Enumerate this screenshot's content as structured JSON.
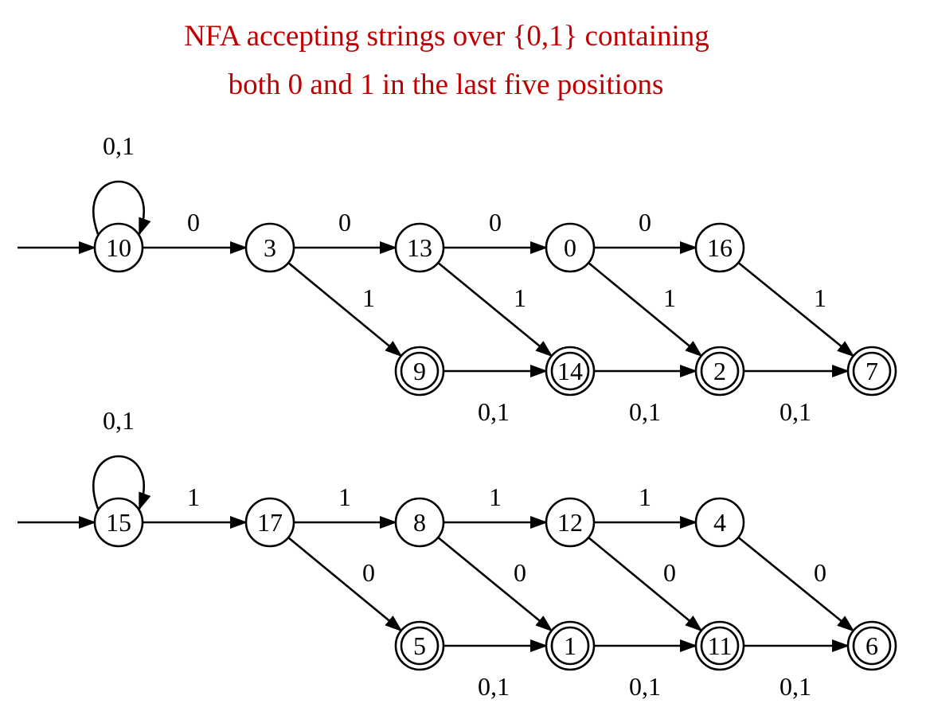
{
  "title": {
    "line1": "NFA accepting strings over {0,1} containing",
    "line2": "both 0 and 1 in the last five positions"
  },
  "colors": {
    "title": "#c00000",
    "ink": "#000000",
    "background": "#ffffff"
  },
  "states": [
    {
      "id": "10",
      "start": true,
      "accepting": false
    },
    {
      "id": "3",
      "start": false,
      "accepting": false
    },
    {
      "id": "13",
      "start": false,
      "accepting": false
    },
    {
      "id": "0",
      "start": false,
      "accepting": false
    },
    {
      "id": "16",
      "start": false,
      "accepting": false
    },
    {
      "id": "9",
      "start": false,
      "accepting": true
    },
    {
      "id": "14",
      "start": false,
      "accepting": true
    },
    {
      "id": "2",
      "start": false,
      "accepting": true
    },
    {
      "id": "7",
      "start": false,
      "accepting": true
    },
    {
      "id": "15",
      "start": true,
      "accepting": false
    },
    {
      "id": "17",
      "start": false,
      "accepting": false
    },
    {
      "id": "8",
      "start": false,
      "accepting": false
    },
    {
      "id": "12",
      "start": false,
      "accepting": false
    },
    {
      "id": "4",
      "start": false,
      "accepting": false
    },
    {
      "id": "5",
      "start": false,
      "accepting": true
    },
    {
      "id": "1",
      "start": false,
      "accepting": true
    },
    {
      "id": "11",
      "start": false,
      "accepting": true
    },
    {
      "id": "6",
      "start": false,
      "accepting": true
    }
  ],
  "transitions": [
    {
      "from": "10",
      "to": "10",
      "label": "0,1"
    },
    {
      "from": "10",
      "to": "3",
      "label": "0"
    },
    {
      "from": "3",
      "to": "13",
      "label": "0"
    },
    {
      "from": "13",
      "to": "0",
      "label": "0"
    },
    {
      "from": "0",
      "to": "16",
      "label": "0"
    },
    {
      "from": "3",
      "to": "9",
      "label": "1"
    },
    {
      "from": "13",
      "to": "14",
      "label": "1"
    },
    {
      "from": "0",
      "to": "2",
      "label": "1"
    },
    {
      "from": "16",
      "to": "7",
      "label": "1"
    },
    {
      "from": "9",
      "to": "14",
      "label": "0,1"
    },
    {
      "from": "14",
      "to": "2",
      "label": "0,1"
    },
    {
      "from": "2",
      "to": "7",
      "label": "0,1"
    },
    {
      "from": "15",
      "to": "15",
      "label": "0,1"
    },
    {
      "from": "15",
      "to": "17",
      "label": "1"
    },
    {
      "from": "17",
      "to": "8",
      "label": "1"
    },
    {
      "from": "8",
      "to": "12",
      "label": "1"
    },
    {
      "from": "12",
      "to": "4",
      "label": "1"
    },
    {
      "from": "17",
      "to": "5",
      "label": "0"
    },
    {
      "from": "8",
      "to": "1",
      "label": "0"
    },
    {
      "from": "12",
      "to": "11",
      "label": "0"
    },
    {
      "from": "4",
      "to": "6",
      "label": "0"
    },
    {
      "from": "5",
      "to": "1",
      "label": "0,1"
    },
    {
      "from": "1",
      "to": "11",
      "label": "0,1"
    },
    {
      "from": "11",
      "to": "6",
      "label": "0,1"
    }
  ]
}
